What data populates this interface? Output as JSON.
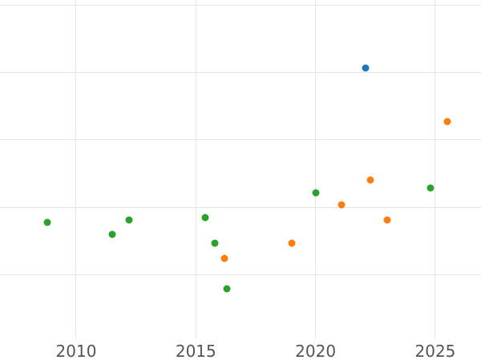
{
  "chart_data": {
    "type": "scatter",
    "title": "",
    "xlabel": "",
    "ylabel": "",
    "grid": true,
    "legend": "none",
    "xlim": [
      2006.82,
      2026.91
    ],
    "ylim": [
      -0.95,
      4.08
    ],
    "x_ticks": [
      {
        "value": 2010,
        "label": "2010"
      },
      {
        "value": 2015,
        "label": "2015"
      },
      {
        "value": 2020,
        "label": "2020"
      },
      {
        "value": 2025,
        "label": "2025"
      }
    ],
    "y_gridlines": [
      0,
      1,
      2,
      3,
      4
    ],
    "series": [
      {
        "name": "green-series",
        "color": "#2ca02c",
        "points": [
          {
            "x": 2008.8,
            "y": 0.78
          },
          {
            "x": 2011.5,
            "y": 0.59
          },
          {
            "x": 2012.2,
            "y": 0.81
          },
          {
            "x": 2015.4,
            "y": 0.84
          },
          {
            "x": 2015.8,
            "y": 0.47
          },
          {
            "x": 2016.3,
            "y": -0.21
          },
          {
            "x": 2020.0,
            "y": 1.21
          },
          {
            "x": 2024.8,
            "y": 1.29
          }
        ]
      },
      {
        "name": "orange-series",
        "color": "#ff7f0e",
        "points": [
          {
            "x": 2016.2,
            "y": 0.24
          },
          {
            "x": 2019.0,
            "y": 0.47
          },
          {
            "x": 2021.1,
            "y": 1.04
          },
          {
            "x": 2022.3,
            "y": 1.41
          },
          {
            "x": 2023.0,
            "y": 0.81
          },
          {
            "x": 2025.5,
            "y": 2.27
          }
        ]
      },
      {
        "name": "blue-series",
        "color": "#1f77b4",
        "points": [
          {
            "x": 2022.1,
            "y": 3.07
          }
        ]
      }
    ],
    "marker_diameter_px": 9,
    "colors": {
      "background": "#ffffff",
      "gridline": "#e6e6e6",
      "tick_label": "#555555"
    }
  }
}
